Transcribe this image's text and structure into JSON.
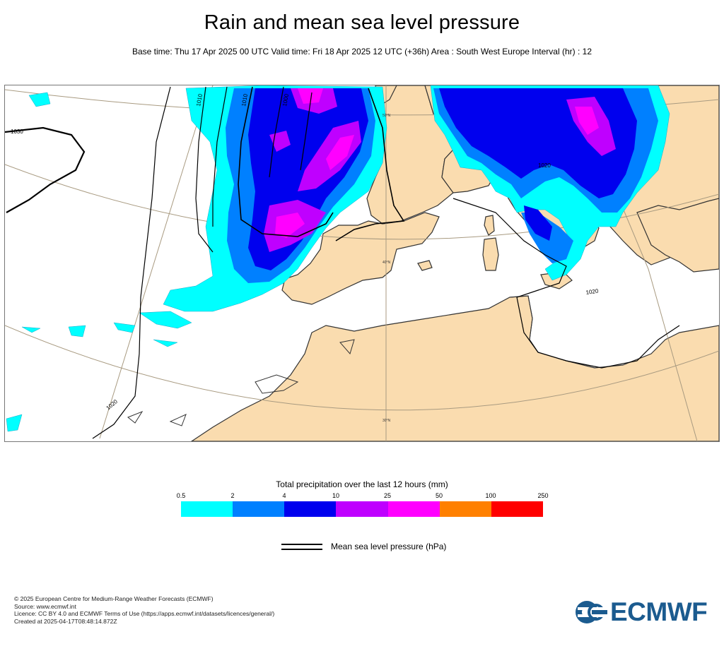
{
  "title": "Rain and mean sea level pressure",
  "subtitle": "Base time: Thu 17 Apr 2025 00 UTC Valid time: Fri 18 Apr 2025 12 UTC (+36h) Area : South West Europe Interval (hr) : 12",
  "map": {
    "isobar_labels": [
      "1030",
      "1020",
      "1010",
      "1010",
      "1000",
      "1020",
      "1020"
    ],
    "graticule_labels": [
      "50°N",
      "40°N",
      "30°N"
    ],
    "colors": {
      "land": "#fadcaf",
      "sea": "#ffffff",
      "coastline": "#333333",
      "graticule": "#a89a80",
      "isobar": "#000000"
    }
  },
  "legend": {
    "title": "Total precipitation over the last 12 hours (mm)",
    "ticks": [
      "0.5",
      "2",
      "4",
      "10",
      "25",
      "50",
      "100",
      "250"
    ],
    "colors": [
      "#00ffff",
      "#0080ff",
      "#0000ee",
      "#bf00ff",
      "#ff00ff",
      "#ff8000",
      "#ff0000"
    ],
    "pressure_label": "Mean sea level pressure (hPa)"
  },
  "footer": {
    "line1": "© 2025 European Centre for Medium-Range Weather Forecasts (ECMWF)",
    "line2": "Source: www.ecmwf.int",
    "line3": "Licence: CC BY 4.0 and ECMWF Terms of Use (https://apps.ecmwf.int/datasets/licences/general/)",
    "line4": "Created at 2025-04-17T08:48:14.872Z"
  },
  "logo": {
    "text": "ECMWF",
    "icon": "ecmwf-logo-icon"
  }
}
